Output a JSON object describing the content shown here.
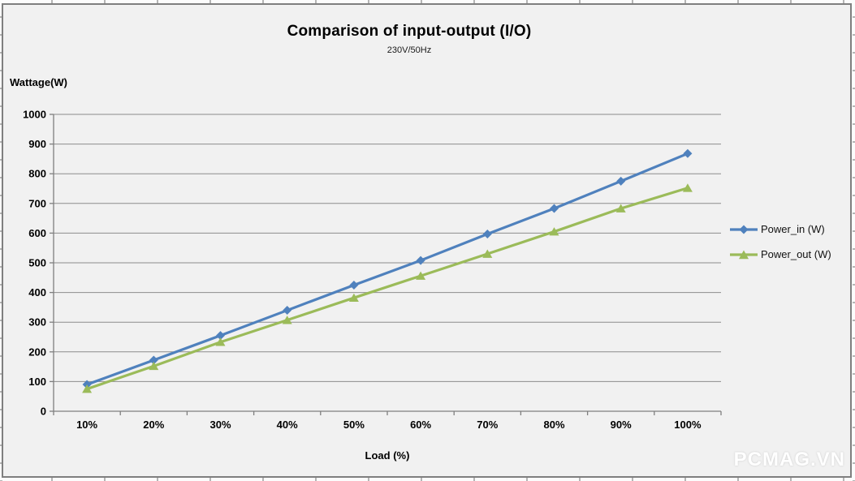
{
  "watermark": "PCMAG.VN",
  "colors": {
    "chart_background": "#f1f1f1",
    "chart_border": "#7f7f7f",
    "gridline": "#8c8c8c",
    "axis": "#7f7f7f",
    "tick_text": "#000000",
    "watermark_color": "#ffffff"
  },
  "chart_data": {
    "type": "line",
    "title": "Comparison of input-output (I/O)",
    "subtitle": "230V/50Hz",
    "xlabel": "Load (%)",
    "ylabel": "Wattage(W)",
    "categories": [
      "10%",
      "20%",
      "30%",
      "40%",
      "50%",
      "60%",
      "70%",
      "80%",
      "90%",
      "100%"
    ],
    "series": [
      {
        "name": "Power_in (W)",
        "color": "#4f81bd",
        "marker": "diamond",
        "values": [
          90,
          172,
          255,
          340,
          425,
          508,
          597,
          683,
          775,
          868
        ]
      },
      {
        "name": "Power_out (W)",
        "color": "#9bbb59",
        "marker": "triangle",
        "values": [
          75,
          152,
          233,
          307,
          382,
          456,
          530,
          605,
          683,
          752
        ]
      }
    ],
    "ylim": [
      0,
      1000
    ],
    "ytick_step": 100,
    "grid": true,
    "legend_position": "right"
  }
}
